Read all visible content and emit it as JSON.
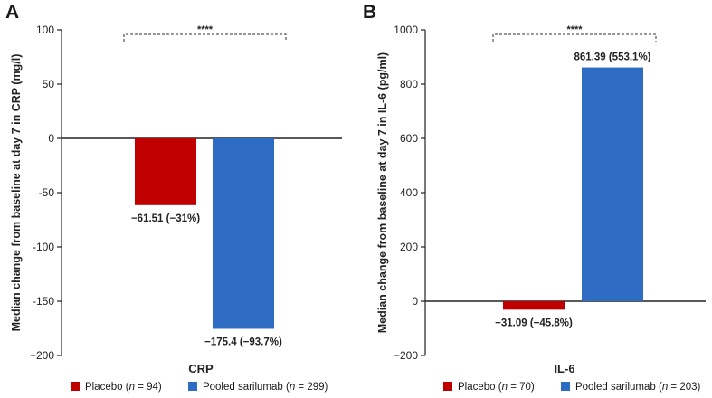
{
  "colors": {
    "placebo": "#c00000",
    "sarilumab": "#2e6cc4",
    "axis": "#222222"
  },
  "chart_data": [
    {
      "type": "bar",
      "panel_label": "A",
      "xlabel": "CRP",
      "ylabel": "Median change from baseline at day 7 in CRP (mg/l)",
      "ylim": [
        -200,
        100
      ],
      "yticks": [
        100,
        50,
        0,
        -50,
        -100,
        -150,
        -200
      ],
      "ytick_labels": [
        "100",
        "50",
        "0",
        "-50",
        "-100",
        "-150",
        "−200"
      ],
      "series": [
        {
          "name": "Placebo",
          "value": -61.51,
          "label": "−61.51 (−31%)",
          "color": "#c00000"
        },
        {
          "name": "Pooled sarilumab",
          "value": -175.4,
          "label": "−175.4 (−93.7%)",
          "color": "#2e6cc4"
        }
      ],
      "significance": "****",
      "legend": [
        {
          "pre": "Placebo (",
          "n": "n",
          "post": " = 94)",
          "color": "#c00000"
        },
        {
          "pre": "Pooled sarilumab (",
          "n": "n",
          "post": " = 299)",
          "color": "#2e6cc4"
        }
      ]
    },
    {
      "type": "bar",
      "panel_label": "B",
      "xlabel": "IL-6",
      "ylabel": "Median change from baseline at day 7 in IL-6 (pg/ml)",
      "ylim": [
        -200,
        1000
      ],
      "yticks": [
        1000,
        800,
        600,
        400,
        200,
        0,
        -200
      ],
      "ytick_labels": [
        "1000",
        "800",
        "600",
        "400",
        "200",
        "0",
        "−200"
      ],
      "series": [
        {
          "name": "Placebo",
          "value": -31.09,
          "label": "−31.09 (−45.8%)",
          "color": "#c00000"
        },
        {
          "name": "Pooled sarilumab",
          "value": 861.39,
          "label": "861.39 (553.1%)",
          "color": "#2e6cc4"
        }
      ],
      "significance": "****",
      "legend": [
        {
          "pre": "Placebo (",
          "n": "n",
          "post": " = 70)",
          "color": "#c00000"
        },
        {
          "pre": "Pooled sarilumab (",
          "n": "n",
          "post": " = 203)",
          "color": "#2e6cc4"
        }
      ]
    }
  ]
}
